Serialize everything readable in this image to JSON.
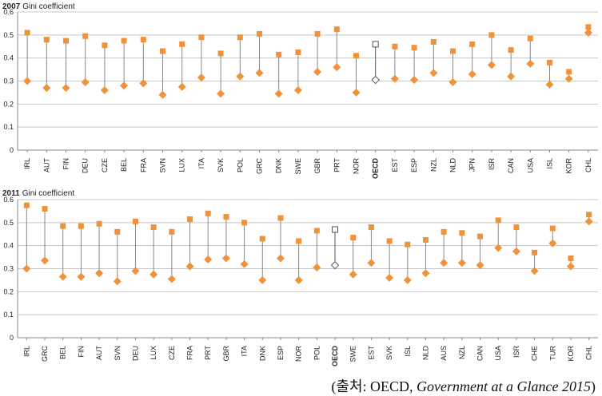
{
  "colors": {
    "marker": "#f0923a",
    "connector": "#888888",
    "oecd": "#555555",
    "grid": "#c8c8c8",
    "text": "#222222"
  },
  "caption": {
    "open": "(출처: OECD, ",
    "source": "Government at a Glance 2015",
    "close": ")"
  },
  "chart_data": [
    {
      "type": "dumbbell",
      "title": "2007",
      "ylabel": "Gini coefficient",
      "ylim": [
        0,
        0.6
      ],
      "yticks": [
        "0",
        "0.1",
        "0.2",
        "0.3",
        "0.4",
        "0.5",
        "0.6"
      ],
      "grid": true,
      "highlight": "OECD",
      "categories": [
        "IRL",
        "AUT",
        "FIN",
        "DEU",
        "CZE",
        "BEL",
        "FRA",
        "SVN",
        "LUX",
        "ITA",
        "SVK",
        "POL",
        "GRC",
        "DNK",
        "SWE",
        "GBR",
        "PRT",
        "NOR",
        "OECD",
        "EST",
        "ESP",
        "NZL",
        "NLD",
        "JPN",
        "ISR",
        "CAN",
        "USA",
        "ISL",
        "KOR",
        "CHL"
      ],
      "series": [
        {
          "values": [
            0.51,
            0.48,
            0.475,
            0.495,
            0.455,
            0.475,
            0.48,
            0.43,
            0.46,
            0.49,
            0.42,
            0.49,
            0.505,
            0.415,
            0.425,
            0.505,
            0.525,
            0.41,
            0.46,
            0.45,
            0.445,
            0.47,
            0.43,
            0.46,
            0.5,
            0.435,
            0.485,
            0.38,
            0.34,
            0.535
          ]
        },
        {
          "values": [
            0.3,
            0.27,
            0.27,
            0.295,
            0.26,
            0.28,
            0.29,
            0.24,
            0.275,
            0.315,
            0.245,
            0.32,
            0.335,
            0.245,
            0.26,
            0.34,
            0.36,
            0.25,
            0.305,
            0.31,
            0.305,
            0.335,
            0.295,
            0.33,
            0.37,
            0.32,
            0.375,
            0.285,
            0.31,
            0.51
          ]
        }
      ]
    },
    {
      "type": "dumbbell",
      "title": "2011",
      "ylabel": "Gini coefficient",
      "ylim": [
        0,
        0.6
      ],
      "yticks": [
        "0",
        "0.1",
        "0.2",
        "0.3",
        "0.4",
        "0.5",
        "0.6"
      ],
      "grid": true,
      "highlight": "OECD",
      "categories": [
        "IRL",
        "GRC",
        "BEL",
        "FIN",
        "AUT",
        "SVN",
        "DEU",
        "LUX",
        "CZE",
        "FRA",
        "PRT",
        "GBR",
        "ITA",
        "DNK",
        "ESP",
        "NOR",
        "POL",
        "OECD",
        "SWE",
        "EST",
        "SVK",
        "ISL",
        "NLD",
        "AUS",
        "NZL",
        "CAN",
        "USA",
        "ISR",
        "CHE",
        "TUR",
        "KOR",
        "CHL"
      ],
      "series": [
        {
          "values": [
            0.575,
            0.56,
            0.485,
            0.485,
            0.495,
            0.46,
            0.505,
            0.48,
            0.46,
            0.515,
            0.54,
            0.525,
            0.5,
            0.43,
            0.52,
            0.42,
            0.465,
            0.47,
            0.435,
            0.48,
            0.42,
            0.405,
            0.425,
            0.46,
            0.455,
            0.44,
            0.51,
            0.48,
            0.37,
            0.475,
            0.345,
            0.535
          ]
        },
        {
          "values": [
            0.3,
            0.335,
            0.265,
            0.265,
            0.28,
            0.245,
            0.29,
            0.275,
            0.255,
            0.31,
            0.34,
            0.345,
            0.32,
            0.25,
            0.345,
            0.25,
            0.305,
            0.315,
            0.275,
            0.325,
            0.26,
            0.25,
            0.28,
            0.325,
            0.325,
            0.315,
            0.39,
            0.375,
            0.29,
            0.41,
            0.31,
            0.505
          ]
        }
      ]
    }
  ]
}
